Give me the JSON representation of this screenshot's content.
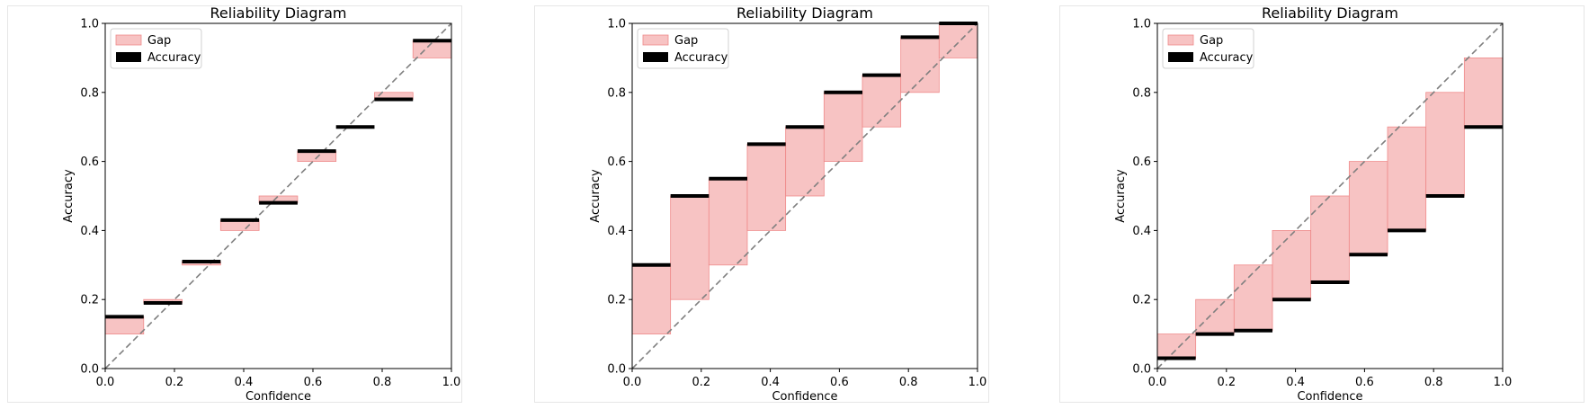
{
  "colors": {
    "gap_fill": "#f7c3c3",
    "gap_stroke": "#ef8a8a",
    "accuracy": "#000000",
    "diagonal": "#7f7f7f"
  },
  "chart_data": [
    {
      "type": "bar",
      "title": "Reliability Diagram",
      "xlabel": "Confidence",
      "ylabel": "Accuracy",
      "xlim": [
        0,
        1
      ],
      "ylim": [
        0,
        1
      ],
      "xticks": [
        "0.0",
        "0.2",
        "0.4",
        "0.6",
        "0.8",
        "1.0"
      ],
      "yticks": [
        "0.0",
        "0.2",
        "0.4",
        "0.6",
        "0.8",
        "1.0"
      ],
      "legend": {
        "placement": "top-left",
        "entries": [
          "Gap",
          "Accuracy"
        ]
      },
      "bin_edges": [
        0,
        0.1111,
        0.2222,
        0.3333,
        0.4444,
        0.5556,
        0.6667,
        0.7778,
        0.8889,
        1.0
      ],
      "series": [
        {
          "name": "Accuracy",
          "values": [
            0.15,
            0.19,
            0.31,
            0.43,
            0.48,
            0.63,
            0.7,
            0.78,
            0.95
          ]
        },
        {
          "name": "Gap",
          "low": [
            0.1,
            0.19,
            0.3,
            0.4,
            0.48,
            0.6,
            0.7,
            0.78,
            0.9
          ],
          "high": [
            0.15,
            0.2,
            0.31,
            0.43,
            0.5,
            0.63,
            0.7,
            0.8,
            0.95
          ]
        }
      ]
    },
    {
      "type": "bar",
      "title": "Reliability Diagram",
      "xlabel": "Confidence",
      "ylabel": "Accuracy",
      "xlim": [
        0,
        1
      ],
      "ylim": [
        0,
        1
      ],
      "xticks": [
        "0.0",
        "0.2",
        "0.4",
        "0.6",
        "0.8",
        "1.0"
      ],
      "yticks": [
        "0.0",
        "0.2",
        "0.4",
        "0.6",
        "0.8",
        "1.0"
      ],
      "legend": {
        "placement": "top-left",
        "entries": [
          "Gap",
          "Accuracy"
        ]
      },
      "bin_edges": [
        0,
        0.1111,
        0.2222,
        0.3333,
        0.4444,
        0.5556,
        0.6667,
        0.7778,
        0.8889,
        1.0
      ],
      "series": [
        {
          "name": "Accuracy",
          "values": [
            0.3,
            0.5,
            0.55,
            0.65,
            0.7,
            0.8,
            0.85,
            0.96,
            1.0
          ]
        },
        {
          "name": "Gap",
          "low": [
            0.1,
            0.2,
            0.3,
            0.4,
            0.5,
            0.6,
            0.7,
            0.8,
            0.9
          ],
          "high": [
            0.3,
            0.5,
            0.55,
            0.65,
            0.7,
            0.8,
            0.85,
            0.96,
            1.0
          ]
        }
      ]
    },
    {
      "type": "bar",
      "title": "Reliability Diagram",
      "xlabel": "Confidence",
      "ylabel": "Accuracy",
      "xlim": [
        0,
        1
      ],
      "ylim": [
        0,
        1
      ],
      "xticks": [
        "0.0",
        "0.2",
        "0.4",
        "0.6",
        "0.8",
        "1.0"
      ],
      "yticks": [
        "0.0",
        "0.2",
        "0.4",
        "0.6",
        "0.8",
        "1.0"
      ],
      "legend": {
        "placement": "top-left",
        "entries": [
          "Gap",
          "Accuracy"
        ]
      },
      "bin_edges": [
        0,
        0.1111,
        0.2222,
        0.3333,
        0.4444,
        0.5556,
        0.6667,
        0.7778,
        0.8889,
        1.0
      ],
      "series": [
        {
          "name": "Accuracy",
          "values": [
            0.03,
            0.1,
            0.11,
            0.2,
            0.25,
            0.33,
            0.4,
            0.5,
            0.7
          ]
        },
        {
          "name": "Gap",
          "low": [
            0.03,
            0.1,
            0.11,
            0.2,
            0.25,
            0.33,
            0.4,
            0.5,
            0.7
          ],
          "high": [
            0.1,
            0.2,
            0.3,
            0.4,
            0.5,
            0.6,
            0.7,
            0.8,
            0.9
          ]
        }
      ]
    }
  ]
}
